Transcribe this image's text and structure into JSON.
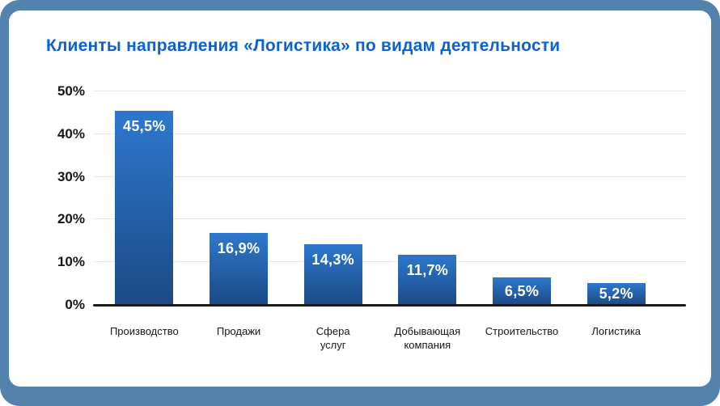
{
  "title": "Клиенты направления «Логистика» по видам деятельности",
  "colors": {
    "frame": "#5383ac",
    "card": "#ffffff",
    "title": "#0d62d2",
    "bar_top": "#2d78cd",
    "bar_bottom": "#1c4a86",
    "axis": "#1a1a1a",
    "gridline": "#e7e7e7",
    "bar_label": "#ffffff",
    "tick_label": "#161616"
  },
  "chart_data": {
    "type": "bar",
    "title": "Клиенты направления «Логистика» по видам деятельности",
    "categories": [
      "Производство",
      "Продажи",
      "Сфера услуг",
      "Добывающая компания",
      "Строительство",
      "Логистика"
    ],
    "values": [
      45.5,
      16.9,
      14.3,
      11.7,
      6.5,
      5.2
    ],
    "value_labels": [
      "45,5%",
      "16,9%",
      "14,3%",
      "11,7%",
      "6,5%",
      "5,2%"
    ],
    "display_labels": [
      "Производство",
      "Продажи",
      "Сфера\nуслуг",
      "Добывающая\nкомпания",
      "Строительство",
      "Логистика"
    ],
    "y_ticks": [
      "0%",
      "10%",
      "20%",
      "30%",
      "40%",
      "50%"
    ],
    "ylim": [
      0,
      50
    ],
    "grid": true,
    "legend": false,
    "xlabel": "",
    "ylabel": ""
  }
}
